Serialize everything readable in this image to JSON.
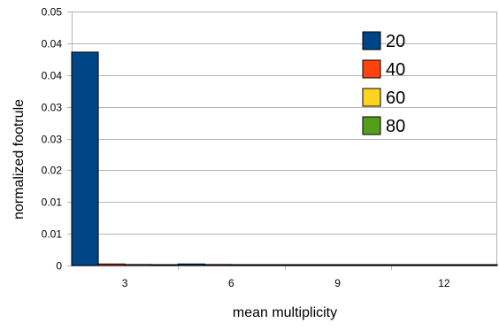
{
  "chart_data": {
    "type": "bar",
    "title": "",
    "xlabel": "mean multiplicity",
    "ylabel": "normalized footrule",
    "categories": [
      "3",
      "6",
      "9",
      "12"
    ],
    "ylim": [
      0,
      0.05
    ],
    "ytick_values": [
      0,
      0.00625,
      0.0125,
      0.01875,
      0.025,
      0.03125,
      0.0375,
      0.04375,
      0.05
    ],
    "ytick_labels": [
      "0",
      "0.01",
      "0.01",
      "0.02",
      "0.03",
      "0.03",
      "0.04",
      "0.04",
      "0.05"
    ],
    "grid": "horizontal",
    "legend_position": "top-right",
    "series": [
      {
        "name": "20",
        "color": "#004586",
        "values": [
          0.042,
          0.0003,
          0.0001,
          0.0001
        ]
      },
      {
        "name": "40",
        "color": "#ff420e",
        "values": [
          0.0003,
          0.0002,
          0.0001,
          0.0001
        ]
      },
      {
        "name": "60",
        "color": "#ffd320",
        "values": [
          0.0002,
          0.0001,
          0.0001,
          0.0001
        ]
      },
      {
        "name": "80",
        "color": "#579d1c",
        "values": [
          0.0001,
          0.0001,
          0.0001,
          0.0001
        ]
      }
    ]
  }
}
